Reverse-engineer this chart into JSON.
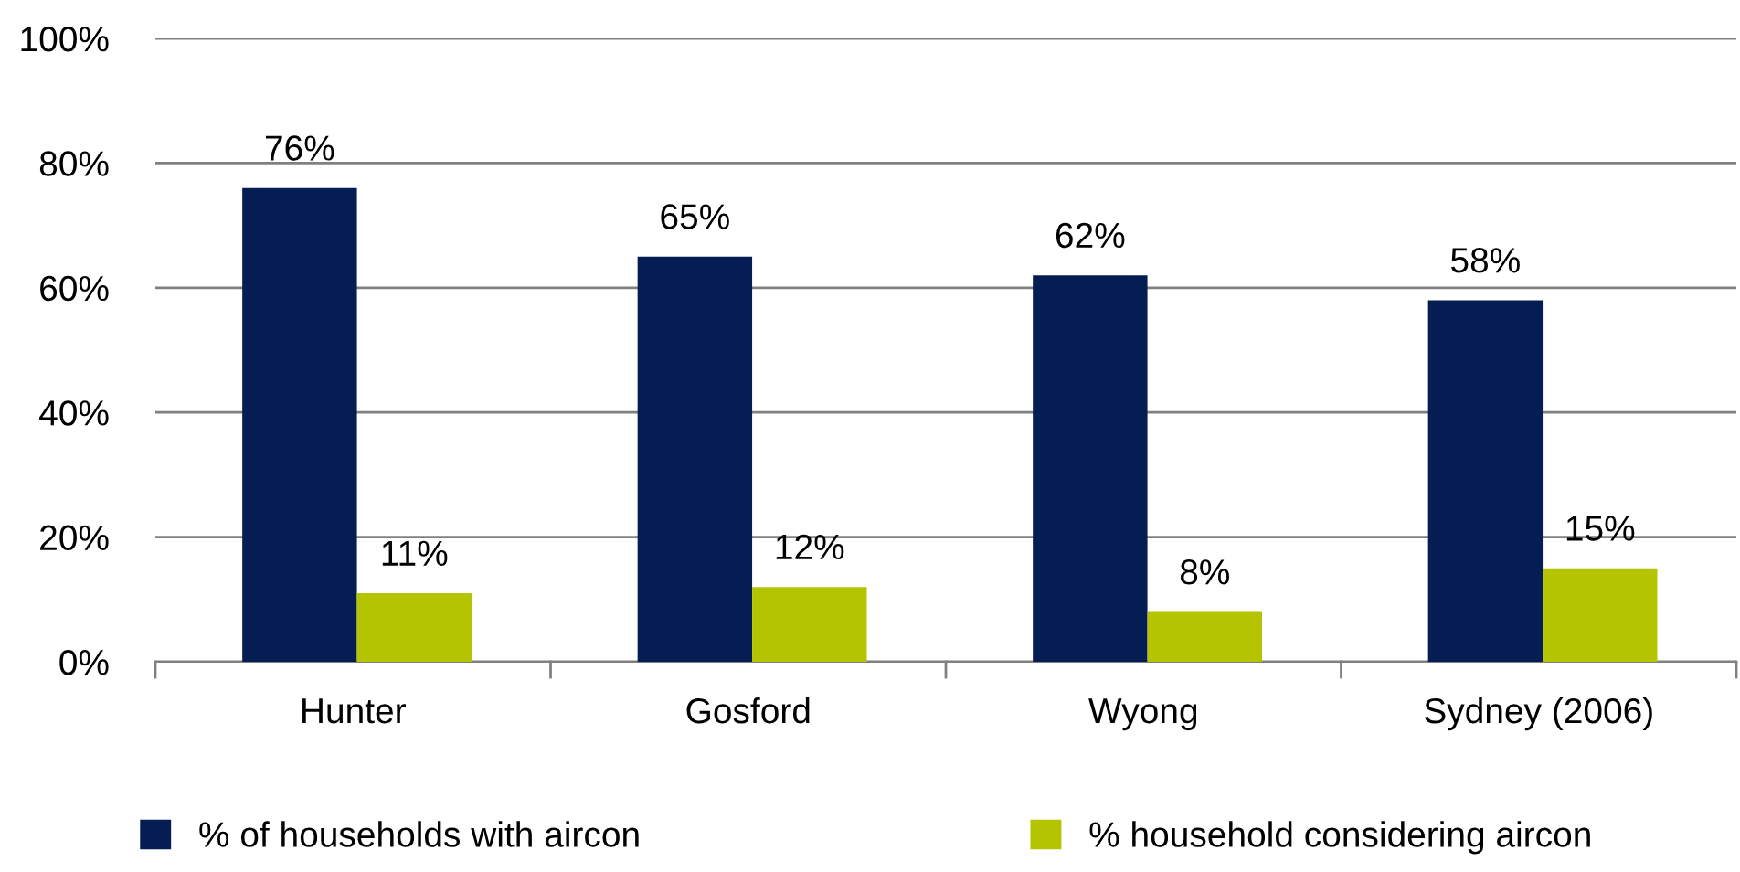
{
  "chart_data": {
    "type": "bar",
    "categories": [
      "Hunter",
      "Gosford",
      "Wyong",
      "Sydney (2006)"
    ],
    "series": [
      {
        "name": "% of households with aircon",
        "color": "#061d54",
        "values": [
          76,
          65,
          62,
          58
        ],
        "value_labels": [
          "76%",
          "65%",
          "62%",
          "58%"
        ]
      },
      {
        "name": "% household considering aircon",
        "color": "#b4c400",
        "values": [
          11,
          12,
          8,
          15
        ],
        "value_labels": [
          "11%",
          "12%",
          "8%",
          "15%"
        ]
      }
    ],
    "ylim": [
      0,
      100
    ],
    "yticks": [
      {
        "value": 0,
        "label": "0%"
      },
      {
        "value": 20,
        "label": "20%"
      },
      {
        "value": 40,
        "label": "40%"
      },
      {
        "value": 60,
        "label": "60%"
      },
      {
        "value": 80,
        "label": "80%"
      },
      {
        "value": 100,
        "label": "100%"
      }
    ],
    "grid": "y",
    "legend": "bottom"
  }
}
